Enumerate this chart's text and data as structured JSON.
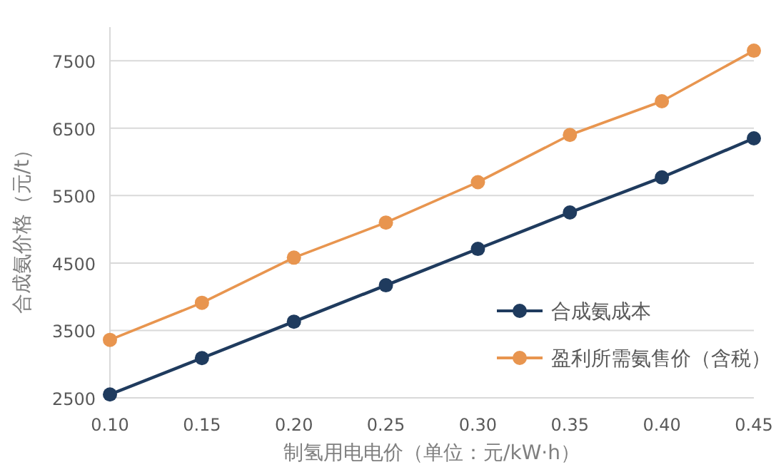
{
  "chart_data": {
    "type": "line",
    "xlabel": "制氢用电电价（单位：元/kW·h）",
    "ylabel": "合成氨价格（元/t）",
    "x": [
      0.1,
      0.15,
      0.2,
      0.25,
      0.3,
      0.35,
      0.4,
      0.45
    ],
    "series": [
      {
        "name": "合成氨成本",
        "color": "#1f3b5e",
        "values": [
          2550,
          3090,
          3630,
          4170,
          4710,
          5250,
          5770,
          6350
        ]
      },
      {
        "name": "盈利所需氨售价（含税）",
        "color": "#e8954f",
        "values": [
          3360,
          3910,
          4580,
          5100,
          5700,
          6400,
          6900,
          7650
        ]
      }
    ],
    "xlim": [
      0.1,
      0.45
    ],
    "xticks": [
      {
        "value": 0.1,
        "label": "0.10"
      },
      0.15,
      {
        "value": 0.2,
        "label": "0.20"
      },
      0.25,
      {
        "value": 0.3,
        "label": "0.30"
      },
      0.35,
      {
        "value": 0.4,
        "label": "0.40"
      },
      0.45
    ],
    "ylim": [
      2500,
      8000
    ],
    "yticks": [
      2500,
      3500,
      4500,
      5500,
      6500,
      7500
    ],
    "grid": "y",
    "legend": "bottom right",
    "marker": "circle",
    "line_style": "solid"
  }
}
